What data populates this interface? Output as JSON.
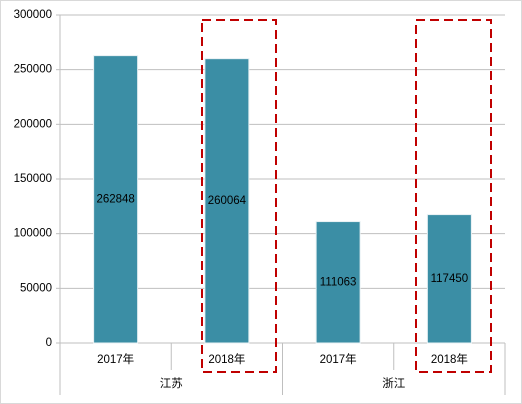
{
  "chart_data": {
    "type": "bar",
    "categories": [
      "2017年",
      "2018年",
      "2017年",
      "2018年"
    ],
    "groups": [
      "江苏",
      "浙江"
    ],
    "values": [
      262848,
      260064,
      111063,
      117450
    ],
    "color": "#3b8ea5",
    "ylim": [
      0,
      300000
    ],
    "yticks": [
      0,
      50000,
      100000,
      150000,
      200000,
      250000,
      300000
    ],
    "grid": true
  }
}
